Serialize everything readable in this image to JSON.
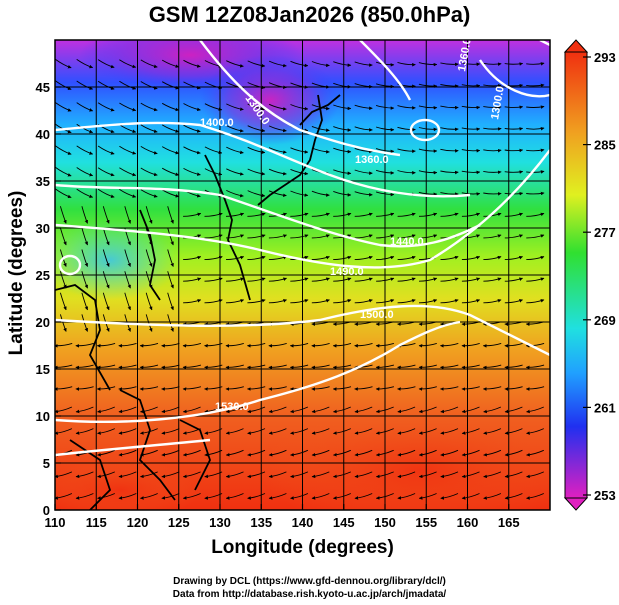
{
  "figure": {
    "title": "GSM 12Z08Jan2026 (850.0hPa)",
    "xlabel": "Longitude (degrees)",
    "ylabel": "Latitude  (degrees)",
    "credit_line1": "Drawing by DCL (https://www.gfd-dennou.org/library/dcl/)",
    "credit_line2": "Data from http://database.rish.kyoto-u.ac.jp/arch/jmadata/"
  },
  "map": {
    "lon_range": [
      110,
      170
    ],
    "lat_range": [
      0,
      50
    ],
    "lon_ticks": [
      "110",
      "115",
      "120",
      "125",
      "130",
      "135",
      "140",
      "145",
      "150",
      "155",
      "160",
      "165"
    ],
    "lat_ticks": [
      "0",
      "5",
      "10",
      "15",
      "20",
      "25",
      "30",
      "35",
      "40",
      "45"
    ],
    "grid_step_deg": 5,
    "fill_variable_range": [
      253,
      293
    ],
    "contour_labels": [
      "1300.0",
      "1400.0",
      "1360.0",
      "1360.0",
      "1440.0",
      "1490.0",
      "1500.0",
      "1530.0",
      "1300.0"
    ],
    "colors": {
      "cold": "#e020c0",
      "mid_cold": "#2040ff",
      "mid": "#20e0f0",
      "mid_warm": "#30e020",
      "warm_yellow": "#f0f020",
      "hot": "#f03010"
    }
  },
  "colorbar": {
    "tick_labels": [
      "293",
      "285",
      "277",
      "269",
      "261",
      "253"
    ],
    "range": [
      253,
      293
    ]
  }
}
